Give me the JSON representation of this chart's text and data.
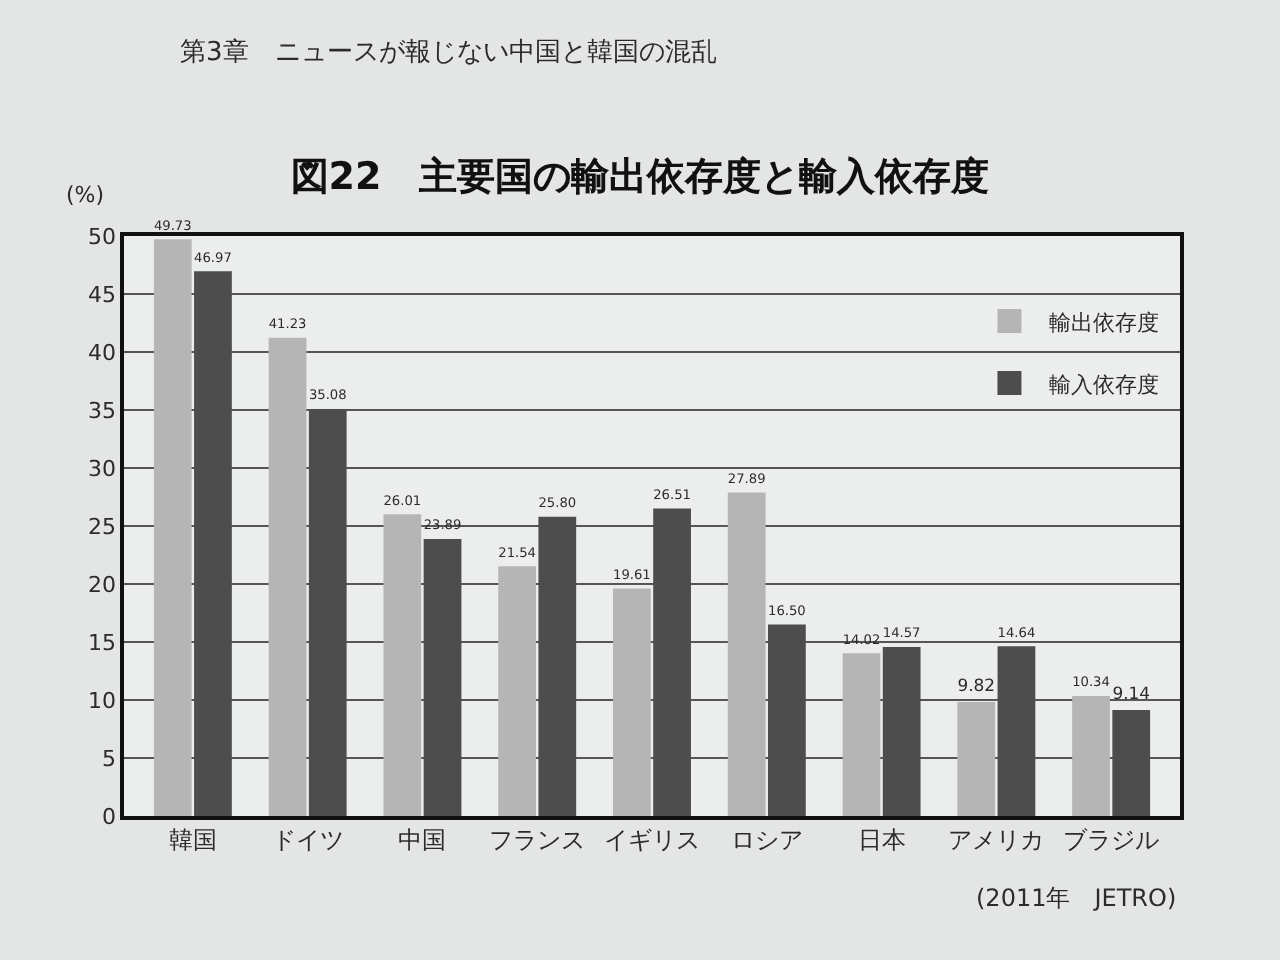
{
  "chart_data": {
    "type": "bar",
    "title": "図22　主要国の輸出依存度と輸入依存度",
    "ylabel": "(%)",
    "annotations": [
      "第3章　ニュースが報じない中国と韓国の混乱",
      "(2011年　JETRO)"
    ],
    "categories": [
      "韓国",
      "ドイツ",
      "中国",
      "フランス",
      "イギリス",
      "ロシア",
      "日本",
      "アメリカ",
      "ブラジル"
    ],
    "series": [
      {
        "name": "輸出依存度",
        "color": "#b5b5b5",
        "values": [
          49.73,
          41.23,
          26.01,
          21.54,
          19.61,
          27.89,
          14.02,
          9.82,
          10.34
        ],
        "value_labels": [
          "49.73",
          "41.23",
          "26.01",
          "21.54",
          "19.61",
          "27.89",
          "14.02",
          "9.82",
          "10.34"
        ]
      },
      {
        "name": "輸入依存度",
        "color": "#4d4d4d",
        "values": [
          46.97,
          35.08,
          23.89,
          25.8,
          26.51,
          16.5,
          14.57,
          14.64,
          9.14
        ],
        "value_labels": [
          "46.97",
          "35.08",
          "23.89",
          "25.80",
          "26.51",
          "16.50",
          "14.57",
          "14.64",
          "9.14"
        ]
      }
    ],
    "ylim": [
      0,
      50
    ],
    "yticks": [
      0,
      5,
      10,
      15,
      20,
      25,
      30,
      35,
      40,
      45,
      50
    ],
    "grid": "y",
    "legend": "top right"
  }
}
